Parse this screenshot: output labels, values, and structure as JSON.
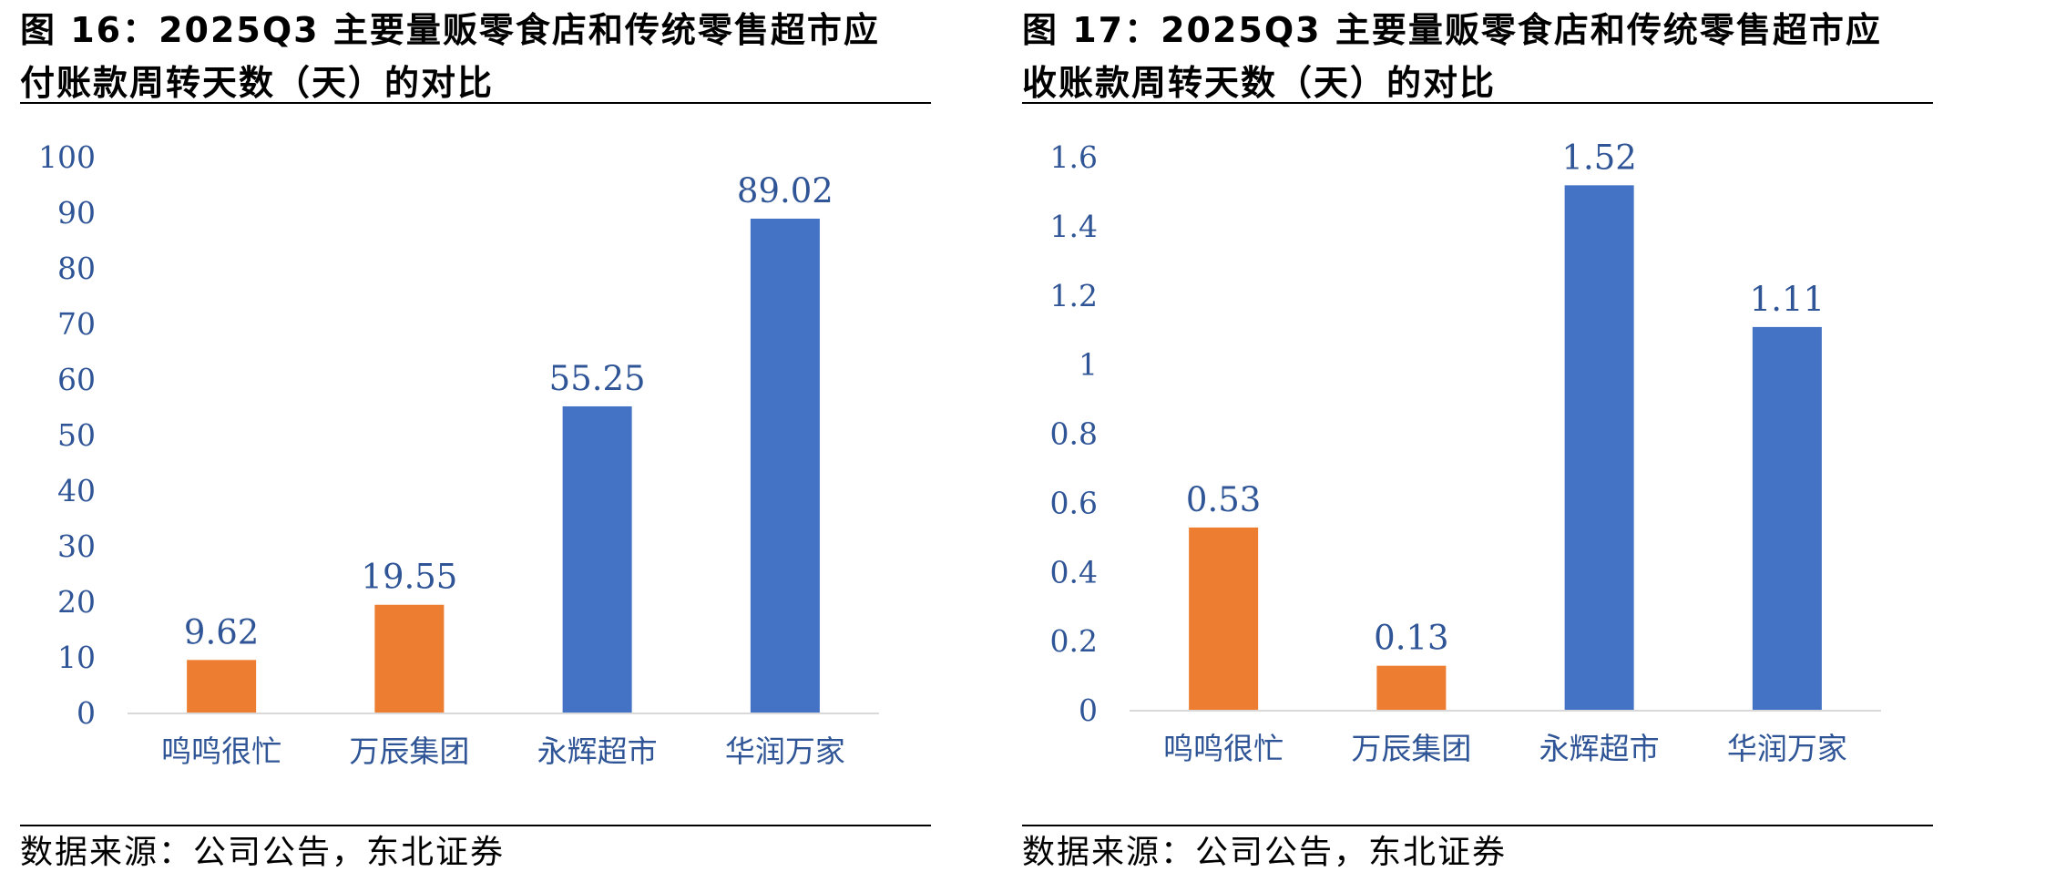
{
  "colors": {
    "orange": "#ED7D31",
    "blue": "#4472C4",
    "text_blue": "#2F5597",
    "axis": "#D9D9D9"
  },
  "chart_data": [
    {
      "type": "bar",
      "title": "图 16：2025Q3 主要量贩零食店和传统零售超市应付账款周转天数（天）的对比",
      "source": "数据来源：公司公告，东北证券",
      "categories": [
        "鸣鸣很忙",
        "万辰集团",
        "永辉超市",
        "华润万家"
      ],
      "values": [
        9.62,
        19.55,
        55.25,
        89.02
      ],
      "value_labels": [
        "9.62",
        "19.55",
        "55.25",
        "89.02"
      ],
      "bar_colors": [
        "#ED7D31",
        "#ED7D31",
        "#4472C4",
        "#4472C4"
      ],
      "yticks": [
        "0",
        "10",
        "20",
        "30",
        "40",
        "50",
        "60",
        "70",
        "80",
        "90",
        "100"
      ],
      "ylim": [
        0,
        100
      ],
      "xlabel": "",
      "ylabel": "",
      "grid": false,
      "legend": "none"
    },
    {
      "type": "bar",
      "title": "图 17：2025Q3 主要量贩零食店和传统零售超市应收账款周转天数（天）的对比",
      "source": "数据来源：公司公告，东北证券",
      "categories": [
        "鸣鸣很忙",
        "万辰集团",
        "永辉超市",
        "华润万家"
      ],
      "values": [
        0.53,
        0.13,
        1.52,
        1.11
      ],
      "value_labels": [
        "0.53",
        "0.13",
        "1.52",
        "1.11"
      ],
      "bar_colors": [
        "#ED7D31",
        "#ED7D31",
        "#4472C4",
        "#4472C4"
      ],
      "yticks": [
        "0",
        "0.2",
        "0.4",
        "0.6",
        "0.8",
        "1",
        "1.2",
        "1.4",
        "1.6"
      ],
      "ylim": [
        0,
        1.6
      ],
      "xlabel": "",
      "ylabel": "",
      "grid": false,
      "legend": "none"
    }
  ],
  "panels": {
    "left": {
      "title_line1": "图 16：2025Q3 主要量贩零食店和传统零售超市应",
      "title_line2": "付账款周转天数（天）的对比",
      "source": "数据来源：公司公告，东北证券"
    },
    "right": {
      "title_line1": "图 17：2025Q3 主要量贩零食店和传统零售超市应",
      "title_line2": "收账款周转天数（天）的对比",
      "source": "数据来源：公司公告，东北证券"
    }
  }
}
